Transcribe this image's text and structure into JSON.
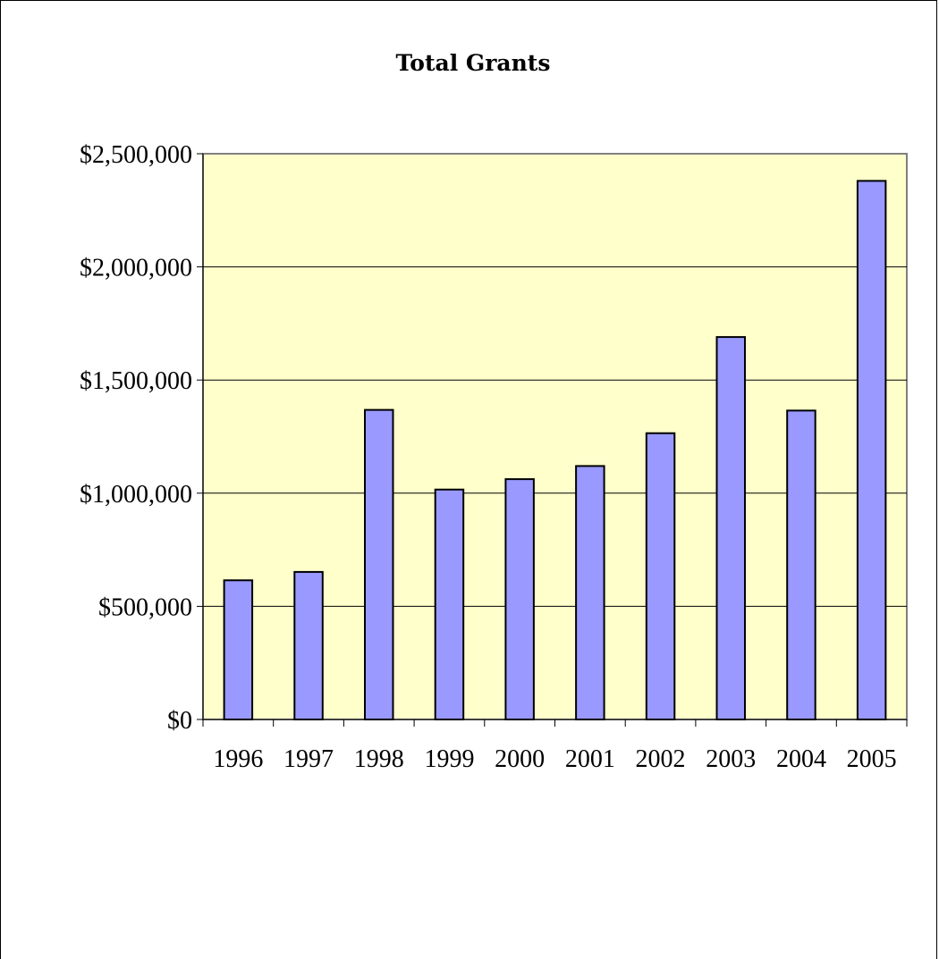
{
  "chart_data": {
    "type": "bar",
    "title": "Total Grants",
    "xlabel": "",
    "ylabel": "",
    "categories": [
      "1996",
      "1997",
      "1998",
      "1999",
      "2000",
      "2001",
      "2002",
      "2003",
      "2004",
      "2005"
    ],
    "values": [
      615000,
      652000,
      1368000,
      1016000,
      1062000,
      1120000,
      1265000,
      1690000,
      1365000,
      2380000
    ],
    "ylim": [
      0,
      2500000
    ],
    "yticks": [
      0,
      500000,
      1000000,
      1500000,
      2000000,
      2500000
    ],
    "ytick_labels": [
      "$0",
      "$500,000",
      "$1,000,000",
      "$1,500,000",
      "$2,000,000",
      "$2,500,000"
    ],
    "grid": true,
    "legend": "none",
    "colors": {
      "bar_fill": "#9999ff",
      "bar_stroke": "#000000",
      "plot_background": "#ffffcc",
      "gridline": "#000000"
    }
  }
}
